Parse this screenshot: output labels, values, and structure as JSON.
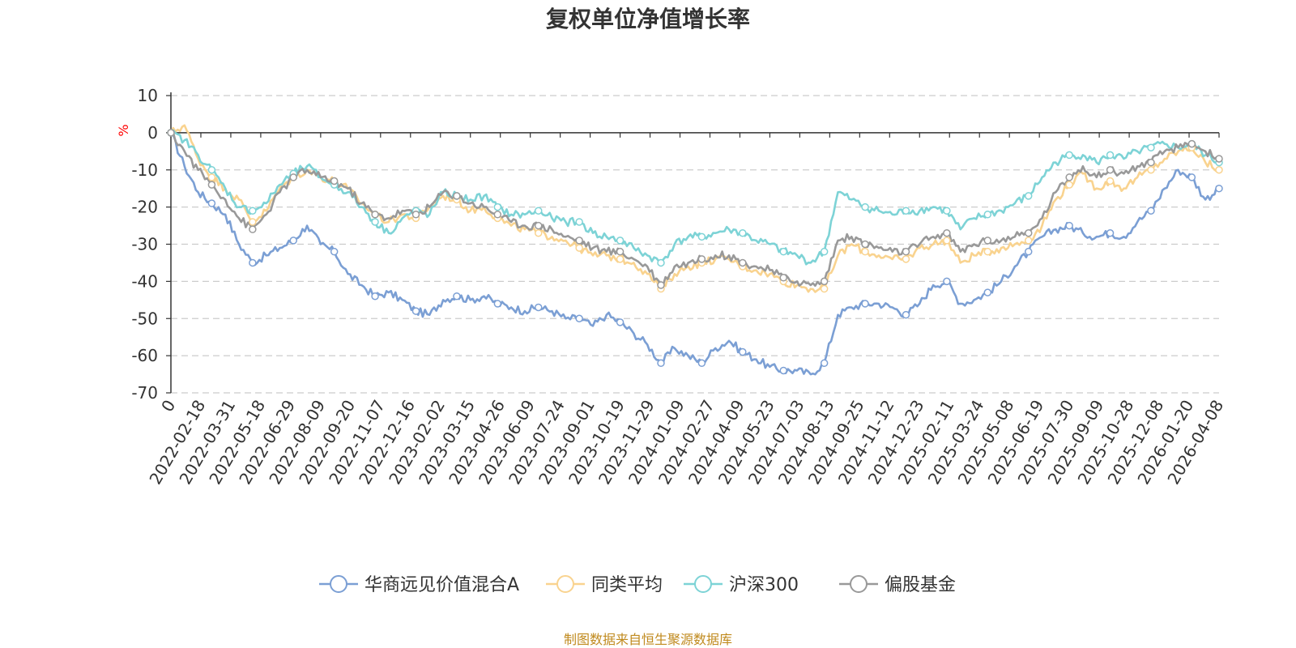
{
  "chart_data": {
    "type": "line",
    "title": "复权单位净值增长率",
    "ylabel": "%",
    "ylim": [
      -70,
      10
    ],
    "yticks": [
      10,
      0,
      -10,
      -20,
      -30,
      -40,
      -50,
      -60,
      -70
    ],
    "x_tick_labels": [
      "0",
      "2022-02-18",
      "2022-03-31",
      "2022-05-18",
      "2022-06-29",
      "2022-08-09",
      "2022-09-20",
      "2022-11-07",
      "2022-12-16",
      "2023-02-02",
      "2023-03-15",
      "2023-04-26",
      "2023-06-09",
      "2023-07-24",
      "2023-09-01",
      "2023-10-19",
      "2023-11-29",
      "2024-01-09",
      "2024-02-27",
      "2024-04-09",
      "2024-05-23",
      "2024-07-03",
      "2024-08-13",
      "2024-09-25",
      "2024-11-12",
      "2024-12-23",
      "2025-02-11",
      "2025-03-24",
      "2025-05-08",
      "2025-06-19",
      "2025-07-30",
      "2025-09-09",
      "2025-10-28",
      "2025-12-08",
      "2026-01-20",
      "2026-04-08"
    ],
    "source": "制图数据来自恒生聚源数据库",
    "series": [
      {
        "name": "华商远见价值混合A",
        "color": "#7b9fd4",
        "values": [
          0,
          -9,
          -16,
          -19,
          -22,
          -30,
          -35,
          -33,
          -31,
          -29,
          -25,
          -30,
          -32,
          -38,
          -41,
          -44,
          -43,
          -45,
          -48,
          -49,
          -45,
          -44,
          -45,
          -44,
          -46,
          -47,
          -48,
          -47,
          -48,
          -50,
          -50,
          -52,
          -49,
          -51,
          -54,
          -57,
          -62,
          -58,
          -60,
          -62,
          -58,
          -56,
          -59,
          -61,
          -63,
          -64,
          -64,
          -65,
          -62,
          -49,
          -47,
          -46,
          -46,
          -47,
          -49,
          -46,
          -41,
          -40,
          -46,
          -45,
          -43,
          -40,
          -36,
          -32,
          -28,
          -26,
          -25,
          -27,
          -28,
          -27,
          -28,
          -24,
          -21,
          -15,
          -10,
          -12,
          -18,
          -15
        ]
      },
      {
        "name": "同类平均",
        "color": "#f9d38f",
        "values": [
          0,
          2,
          -7,
          -12,
          -15,
          -18,
          -24,
          -21,
          -15,
          -12,
          -10,
          -12,
          -13,
          -15,
          -19,
          -22,
          -24,
          -22,
          -23,
          -20,
          -17,
          -18,
          -21,
          -20,
          -23,
          -25,
          -26,
          -27,
          -28,
          -29,
          -31,
          -33,
          -33,
          -34,
          -35,
          -38,
          -42,
          -38,
          -36,
          -35,
          -34,
          -34,
          -36,
          -37,
          -38,
          -40,
          -41,
          -42,
          -42,
          -33,
          -30,
          -32,
          -33,
          -34,
          -34,
          -31,
          -30,
          -29,
          -35,
          -33,
          -32,
          -31,
          -30,
          -29,
          -25,
          -18,
          -14,
          -11,
          -15,
          -13,
          -15,
          -12,
          -10,
          -7,
          -5,
          -4,
          -8,
          -10
        ]
      },
      {
        "name": "沪深300",
        "color": "#7dd3d6",
        "values": [
          0,
          -2,
          -6,
          -10,
          -15,
          -20,
          -21,
          -19,
          -14,
          -11,
          -9,
          -12,
          -14,
          -16,
          -20,
          -24,
          -27,
          -23,
          -21,
          -22,
          -16,
          -17,
          -18,
          -17,
          -20,
          -22,
          -22,
          -21,
          -23,
          -24,
          -24,
          -27,
          -28,
          -29,
          -31,
          -33,
          -35,
          -30,
          -28,
          -28,
          -27,
          -26,
          -27,
          -29,
          -30,
          -32,
          -33,
          -35,
          -32,
          -16,
          -18,
          -20,
          -21,
          -22,
          -21,
          -21,
          -20,
          -21,
          -26,
          -23,
          -22,
          -21,
          -19,
          -17,
          -12,
          -8,
          -6,
          -6,
          -8,
          -6,
          -7,
          -5,
          -4,
          -3,
          -4,
          -3,
          -6,
          -8
        ]
      },
      {
        "name": "偏股基金",
        "color": "#999999",
        "values": [
          0,
          -5,
          -10,
          -14,
          -18,
          -23,
          -26,
          -22,
          -16,
          -12,
          -10,
          -12,
          -13,
          -15,
          -19,
          -22,
          -23,
          -21,
          -22,
          -20,
          -16,
          -17,
          -19,
          -20,
          -22,
          -24,
          -25,
          -25,
          -26,
          -28,
          -29,
          -31,
          -32,
          -32,
          -34,
          -36,
          -41,
          -36,
          -35,
          -34,
          -33,
          -33,
          -35,
          -36,
          -37,
          -39,
          -40,
          -41,
          -40,
          -29,
          -28,
          -30,
          -31,
          -32,
          -32,
          -30,
          -28,
          -27,
          -32,
          -30,
          -29,
          -29,
          -28,
          -27,
          -23,
          -16,
          -12,
          -9,
          -12,
          -10,
          -11,
          -9,
          -8,
          -5,
          -4,
          -3,
          -5,
          -7
        ]
      }
    ]
  }
}
